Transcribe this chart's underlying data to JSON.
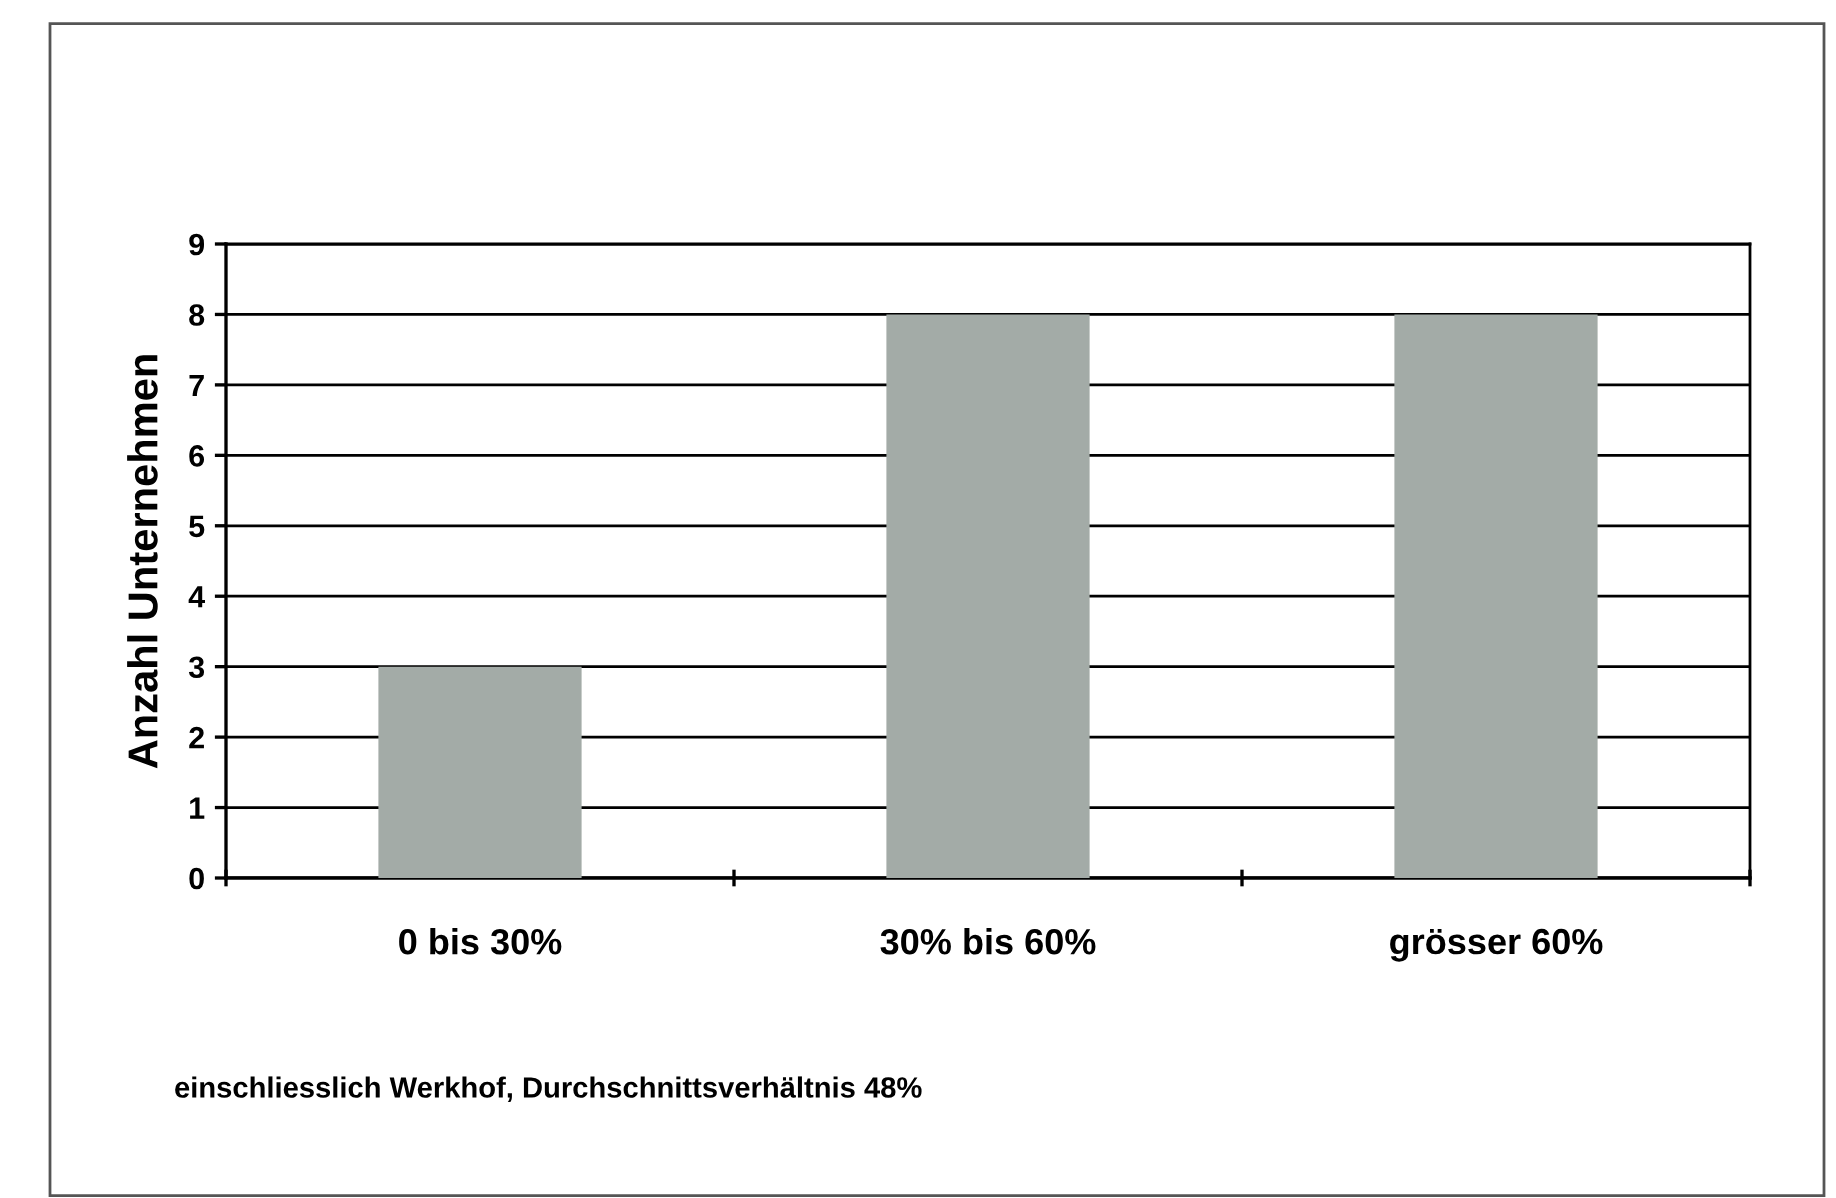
{
  "chart_data": {
    "type": "bar",
    "ylabel": "Anzahl Unternehmen",
    "categories": [
      "0 bis 30%",
      "30% bis 60%",
      "grösser 60%"
    ],
    "values": [
      3,
      8,
      8
    ],
    "color": "#a3aba7",
    "ylim": [
      0,
      9
    ],
    "yticks": [
      0,
      1,
      2,
      3,
      4,
      5,
      6,
      7,
      8,
      9
    ],
    "grid": "y",
    "legend": false,
    "annotations": [
      "einschliesslich Werkhof, Durchschnittsverhältnis 48%"
    ]
  }
}
